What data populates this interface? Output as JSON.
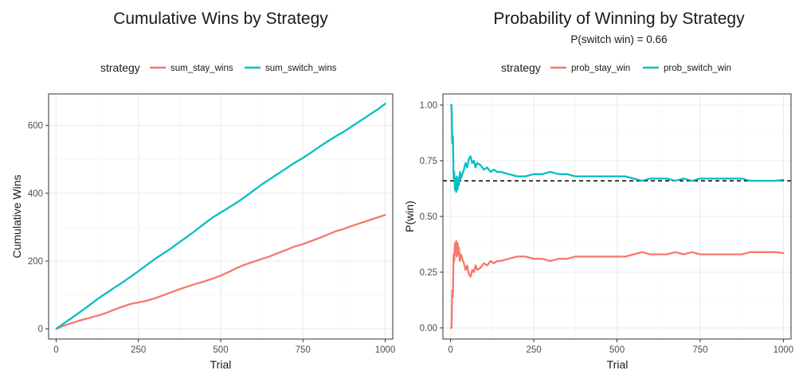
{
  "chart_data": [
    {
      "type": "line",
      "title": "Cumulative Wins by Strategy",
      "subtitle": "",
      "xlabel": "Trial",
      "ylabel": "Cumulative Wins",
      "xlim": [
        -23,
        1023
      ],
      "ylim": [
        -30,
        693
      ],
      "x_ticks": [
        0,
        250,
        500,
        750,
        1000
      ],
      "x_tick_labels": [
        "0",
        "250",
        "500",
        "750",
        "1000"
      ],
      "y_ticks": [
        0,
        200,
        400,
        600
      ],
      "y_tick_labels": [
        "0",
        "200",
        "400",
        "600"
      ],
      "grid": true,
      "legend": {
        "title": "strategy",
        "position": "top"
      },
      "series": [
        {
          "name": "sum_stay_wins",
          "color": "#F8766D",
          "x": [
            1,
            20,
            50,
            80,
            100,
            130,
            150,
            175,
            200,
            225,
            250,
            275,
            300,
            325,
            350,
            375,
            400,
            425,
            450,
            475,
            500,
            525,
            550,
            575,
            600,
            625,
            650,
            675,
            700,
            725,
            750,
            775,
            800,
            825,
            850,
            875,
            900,
            925,
            950,
            975,
            1000
          ],
          "y": [
            0,
            8,
            18,
            27,
            32,
            40,
            46,
            56,
            65,
            73,
            78,
            83,
            90,
            99,
            108,
            117,
            125,
            133,
            140,
            148,
            157,
            168,
            180,
            190,
            198,
            206,
            214,
            224,
            233,
            243,
            250,
            259,
            268,
            278,
            288,
            295,
            304,
            312,
            320,
            328,
            336
          ]
        },
        {
          "name": "sum_switch_wins",
          "color": "#00BFC4",
          "x": [
            1,
            20,
            50,
            80,
            100,
            130,
            150,
            175,
            200,
            225,
            250,
            275,
            300,
            325,
            350,
            375,
            400,
            425,
            450,
            475,
            500,
            525,
            550,
            575,
            600,
            625,
            650,
            675,
            700,
            725,
            750,
            775,
            800,
            825,
            850,
            875,
            900,
            925,
            950,
            975,
            1000
          ],
          "y": [
            1,
            14,
            34,
            55,
            69,
            91,
            104,
            120,
            136,
            153,
            170,
            188,
            206,
            222,
            238,
            256,
            273,
            291,
            310,
            328,
            343,
            358,
            373,
            390,
            408,
            426,
            442,
            458,
            474,
            490,
            504,
            520,
            537,
            553,
            568,
            582,
            598,
            614,
            630,
            646,
            664
          ]
        }
      ]
    },
    {
      "type": "line",
      "title": "Probability of Winning by Strategy",
      "subtitle": "P(switch win) = 0.66",
      "xlabel": "Trial",
      "ylabel": "P(win)",
      "xlim": [
        -23,
        1023
      ],
      "ylim": [
        -0.05,
        1.05
      ],
      "x_ticks": [
        0,
        250,
        500,
        750,
        1000
      ],
      "x_tick_labels": [
        "0",
        "250",
        "500",
        "750",
        "1000"
      ],
      "y_ticks": [
        0,
        0.25,
        0.5,
        0.75,
        1
      ],
      "y_tick_labels": [
        "0.00",
        "0.25",
        "0.50",
        "0.75",
        "1.00"
      ],
      "grid": true,
      "reference_line": {
        "y": 0.66,
        "style": "dashed",
        "color": "#000000"
      },
      "legend": {
        "title": "strategy",
        "position": "top"
      },
      "series": [
        {
          "name": "prob_stay_win",
          "color": "#F8766D",
          "x": [
            1,
            3,
            5,
            7,
            9,
            11,
            13,
            15,
            17,
            19,
            21,
            23,
            25,
            28,
            31,
            35,
            40,
            45,
            50,
            55,
            60,
            65,
            70,
            75,
            80,
            90,
            100,
            110,
            120,
            130,
            140,
            150,
            175,
            200,
            225,
            250,
            275,
            300,
            325,
            350,
            375,
            400,
            425,
            450,
            475,
            500,
            525,
            550,
            575,
            600,
            625,
            650,
            675,
            700,
            725,
            750,
            775,
            800,
            825,
            850,
            875,
            900,
            925,
            950,
            975,
            1000
          ],
          "y": [
            0.0,
            0.0,
            0.17,
            0.14,
            0.33,
            0.3,
            0.38,
            0.33,
            0.39,
            0.32,
            0.38,
            0.33,
            0.36,
            0.3,
            0.33,
            0.31,
            0.29,
            0.26,
            0.28,
            0.24,
            0.23,
            0.26,
            0.25,
            0.28,
            0.26,
            0.27,
            0.29,
            0.28,
            0.3,
            0.29,
            0.3,
            0.3,
            0.31,
            0.32,
            0.32,
            0.31,
            0.31,
            0.3,
            0.31,
            0.31,
            0.32,
            0.32,
            0.32,
            0.32,
            0.32,
            0.32,
            0.32,
            0.33,
            0.34,
            0.33,
            0.33,
            0.33,
            0.34,
            0.33,
            0.34,
            0.33,
            0.33,
            0.33,
            0.33,
            0.33,
            0.33,
            0.34,
            0.34,
            0.34,
            0.34,
            0.336
          ]
        },
        {
          "name": "prob_switch_win",
          "color": "#00BFC4",
          "x": [
            1,
            3,
            5,
            7,
            9,
            11,
            13,
            15,
            17,
            19,
            21,
            23,
            25,
            28,
            31,
            35,
            40,
            45,
            50,
            55,
            60,
            65,
            70,
            75,
            80,
            90,
            100,
            110,
            120,
            130,
            140,
            150,
            175,
            200,
            225,
            250,
            275,
            300,
            325,
            350,
            375,
            400,
            425,
            450,
            475,
            500,
            525,
            550,
            575,
            600,
            625,
            650,
            675,
            700,
            725,
            750,
            775,
            800,
            825,
            850,
            875,
            900,
            925,
            950,
            975,
            1000
          ],
          "y": [
            1.0,
            1.0,
            0.83,
            0.86,
            0.67,
            0.7,
            0.62,
            0.67,
            0.61,
            0.68,
            0.62,
            0.67,
            0.64,
            0.7,
            0.67,
            0.69,
            0.71,
            0.74,
            0.72,
            0.76,
            0.77,
            0.74,
            0.75,
            0.72,
            0.74,
            0.73,
            0.71,
            0.72,
            0.7,
            0.71,
            0.7,
            0.7,
            0.69,
            0.68,
            0.68,
            0.69,
            0.69,
            0.7,
            0.69,
            0.69,
            0.68,
            0.68,
            0.68,
            0.68,
            0.68,
            0.68,
            0.68,
            0.67,
            0.66,
            0.67,
            0.67,
            0.67,
            0.66,
            0.67,
            0.66,
            0.67,
            0.67,
            0.67,
            0.67,
            0.67,
            0.67,
            0.66,
            0.66,
            0.66,
            0.66,
            0.664
          ]
        }
      ]
    }
  ]
}
